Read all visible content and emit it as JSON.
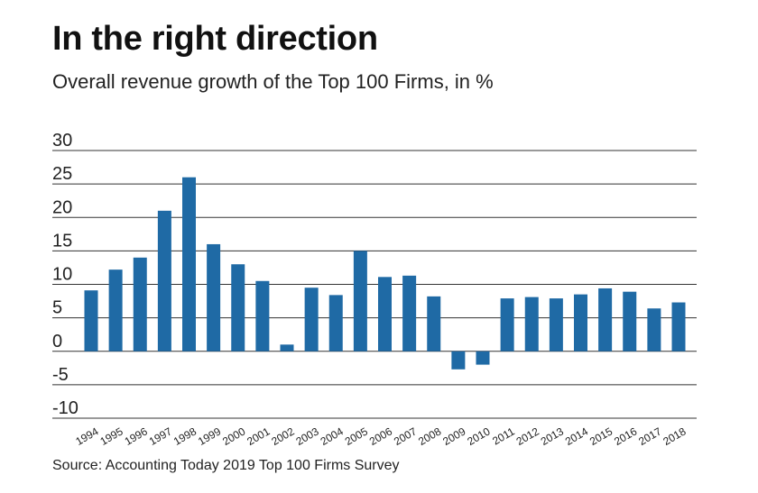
{
  "title": "In the right direction",
  "subtitle": "Overall revenue growth of the Top 100 Firms, in %",
  "source": "Source: Accounting Today 2019 Top 100 Firms Survey",
  "colors": {
    "bar": "#1f6aa5",
    "grid": "#333333",
    "text": "#111111"
  },
  "chart_data": {
    "type": "bar",
    "title": "In the right direction",
    "subtitle": "Overall revenue growth of the Top 100 Firms, in %",
    "xlabel": "",
    "ylabel": "",
    "ylim": [
      -10,
      30
    ],
    "yticks": [
      30,
      25,
      20,
      15,
      10,
      5,
      0,
      -5,
      -10
    ],
    "ytick_labels": [
      "30",
      "25",
      "20",
      "15",
      "10",
      "5",
      "0",
      "-5",
      "-10"
    ],
    "grid": true,
    "categories": [
      "1994",
      "1995",
      "1996",
      "1997",
      "1998",
      "1999",
      "2000",
      "2001",
      "2002",
      "2003",
      "2004",
      "2005",
      "2006",
      "2007",
      "2008",
      "2009",
      "2010",
      "2011",
      "2012",
      "2013",
      "2014",
      "2015",
      "2016",
      "2017",
      "2018"
    ],
    "values": [
      9.1,
      12.2,
      14.0,
      21.0,
      26.0,
      16.0,
      13.0,
      10.5,
      1.0,
      9.5,
      8.4,
      15.0,
      11.1,
      11.3,
      8.2,
      -2.7,
      -2.0,
      7.9,
      8.1,
      7.9,
      8.5,
      9.4,
      8.9,
      6.4,
      7.3
    ]
  }
}
